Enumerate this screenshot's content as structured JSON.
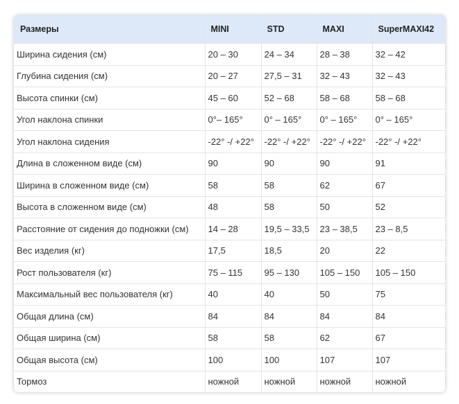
{
  "table": {
    "header": [
      "Размеры",
      "MINI",
      "STD",
      "MAXI",
      "SuperMAXI42"
    ],
    "rows": [
      [
        "Ширина сидения (см)",
        "20 – 30",
        "24 – 34",
        "28 – 38",
        "32 – 42"
      ],
      [
        "Глубина сидения (см)",
        "20 – 27",
        "27,5 – 31",
        "32 – 43",
        "32 – 43"
      ],
      [
        "Высота спинки (см)",
        "45 – 60",
        "52 – 68",
        "58 – 68",
        "58 – 68"
      ],
      [
        "Угол наклона спинки",
        "0°– 165°",
        "0° – 165°",
        "0° – 165°",
        "0° – 165°"
      ],
      [
        "Угол наклона сидения",
        "-22° -/ +22°",
        "-22° -/ +22°",
        "-22° -/ +22°",
        "-22° -/ +22°"
      ],
      [
        "Длина в сложенном виде (см)",
        "90",
        "90",
        "90",
        "91"
      ],
      [
        "Ширина в сложенном виде (см)",
        "58",
        "58",
        "62",
        "67"
      ],
      [
        "Высота в сложенном виде (см)",
        "48",
        "58",
        "50",
        "52"
      ],
      [
        "Расстояние от сидения до подножки (см)",
        "14 – 28",
        "19,5 – 33,5",
        "23 – 38,5",
        "23 – 8,5"
      ],
      [
        "Вес изделия (кг)",
        "17,5",
        "18,5",
        "20",
        "22"
      ],
      [
        "Рост пользователя (кг)",
        "75 – 115",
        "95 – 130",
        "105 – 150",
        "105 – 150"
      ],
      [
        "Максимальный вес пользователя (кг)",
        "40",
        "40",
        "50",
        "75"
      ],
      [
        "Общая длина (см)",
        "84",
        "84",
        "84",
        "84"
      ],
      [
        "Общая ширина (см)",
        "58",
        "58",
        "62",
        "67"
      ],
      [
        "Общая высота (см)",
        "100",
        "100",
        "107",
        "107"
      ],
      [
        "Тормоз",
        "ножной",
        "ножной",
        "ножной",
        "ножной"
      ]
    ]
  }
}
